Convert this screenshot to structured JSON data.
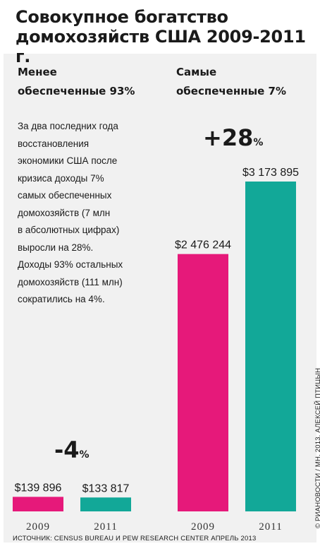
{
  "title": "Совокупное богатство\nдомохозяйств США 2009-2011 г.",
  "left_group": {
    "label": "Менее\nобеспеченные 93%",
    "change_big": "-4",
    "change_unit": "%"
  },
  "right_group": {
    "label": "Самые\nобеспеченные 7%",
    "change_big": "+28",
    "change_unit": "%"
  },
  "description": [
    "За два последних года",
    "восстановления",
    "экономики США после",
    "кризиса доходы 7%",
    "самых обеспеченных",
    "домохозяйств (7 млн",
    "в абсолютных цифрах)",
    "выросли на 28%.",
    "Доходы 93% остальных",
    "домохозяйств (111 млн)",
    "сократились на 4%."
  ],
  "credit": "© РИАНОВОСТИ / МН, 2013.  АЛЕКСЕЙ ПТИЦЫН",
  "source": "ИСТОЧНИК: CENSUS BUREAU И PEW RESEARCH CENTER АПРЕЛЬ 2013",
  "colors": {
    "pink": "#e6197a",
    "teal": "#12a898",
    "background": "#f1f1f1"
  },
  "chart_data": {
    "type": "bar",
    "title": "Совокупное богатство домохозяйств США 2009-2011 г.",
    "categories": [
      "2009",
      "2011",
      "2009",
      "2011"
    ],
    "groups": [
      "Менее обеспеченные 93%",
      "Самые обеспеченные 7%"
    ],
    "values": [
      139896,
      133817,
      2476244,
      3173895
    ],
    "value_labels": [
      "$139 896",
      "$133 817",
      "$2 476 244",
      "$3 173 895"
    ],
    "bar_colors": [
      "#e6197a",
      "#12a898",
      "#e6197a",
      "#12a898"
    ],
    "ylim": [
      0,
      3173895
    ],
    "grid": false,
    "annotations": [
      "-4%",
      "+28%"
    ]
  }
}
